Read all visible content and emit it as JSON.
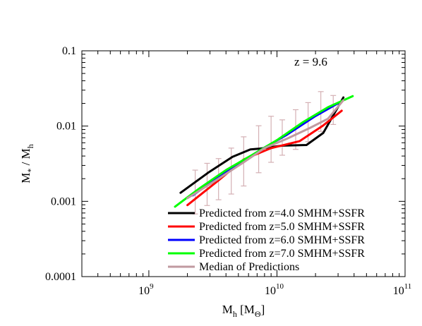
{
  "chart_data": {
    "type": "line",
    "annotation": "z = 9.6",
    "xlabel": {
      "main": "M",
      "sub": "h",
      "unit": " [M",
      "unit_sub": "Θ",
      "unit_close": "]"
    },
    "ylabel": {
      "main": "M",
      "sub1": "*",
      "mid": " / M",
      "sub2": "h"
    },
    "x_scale": "log",
    "y_scale": "log",
    "xlim": [
      300000000,
      100000000000
    ],
    "ylim": [
      0.0001,
      0.1
    ],
    "x_ticks": [
      {
        "value": 1000000000,
        "base": "10",
        "exp": "9"
      },
      {
        "value": 10000000000,
        "base": "10",
        "exp": "10"
      },
      {
        "value": 100000000000,
        "base": "10",
        "exp": "11"
      }
    ],
    "y_ticks": [
      {
        "value": 0.1,
        "label": "0.1"
      },
      {
        "value": 0.01,
        "label": "0.01"
      },
      {
        "value": 0.001,
        "label": "0.001"
      },
      {
        "value": 0.0001,
        "label": "0.0001"
      }
    ],
    "grid": false,
    "legend_position": "bottom-right",
    "series": [
      {
        "name": "Predicted from z=4.0 SMHM+SSFR",
        "color": "#000000",
        "x": [
          1770000000,
          2900000000,
          4500000000,
          6200000000,
          7200000000,
          11000000000,
          17000000000,
          23000000000,
          33000000000
        ],
        "y": [
          0.0013,
          0.0024,
          0.0039,
          0.0049,
          0.005,
          0.0055,
          0.0056,
          0.0081,
          0.024
        ]
      },
      {
        "name": "Predicted from z=5.0 SMHM+SSFR",
        "color": "#ff0000",
        "x": [
          2000000000,
          3500000000,
          5500000000,
          9000000000,
          15000000000,
          23000000000,
          32000000000
        ],
        "y": [
          0.00089,
          0.0019,
          0.0036,
          0.0051,
          0.0063,
          0.0102,
          0.016
        ]
      },
      {
        "name": "Predicted from z=6.0 SMHM+SSFR",
        "color": "#0000ff",
        "x": [
          2200000000,
          3500000000,
          5500000000,
          8000000000,
          12000000000,
          20000000000,
          33000000000
        ],
        "y": [
          0.0012,
          0.0021,
          0.0035,
          0.0052,
          0.0077,
          0.0136,
          0.022
        ]
      },
      {
        "name": "Predicted from z=7.0 SMHM+SSFR",
        "color": "#00ff00",
        "x": [
          1600000000,
          2500000000,
          4000000000,
          6500000000,
          10000000000,
          16000000000,
          25000000000,
          39000000000
        ],
        "y": [
          0.00085,
          0.0015,
          0.0026,
          0.0042,
          0.0065,
          0.0113,
          0.0178,
          0.025
        ]
      },
      {
        "name": "Median of Predictions",
        "color": "#c09aa0",
        "x": [
          2000000000,
          3500000000,
          5500000000,
          8000000000,
          12000000000,
          18000000000,
          25000000000,
          33000000000
        ],
        "y": [
          0.0011,
          0.002,
          0.0033,
          0.0051,
          0.0068,
          0.0094,
          0.0125,
          0.022
        ]
      }
    ],
    "error_bars": {
      "color": "#d4b0b4",
      "points": [
        {
          "x": 2300000000,
          "y": 0.00125,
          "low": 0.00068,
          "high": 0.0026
        },
        {
          "x": 2850000000,
          "y": 0.00165,
          "low": 0.00088,
          "high": 0.0032
        },
        {
          "x": 3500000000,
          "y": 0.00215,
          "low": 0.00105,
          "high": 0.0037
        },
        {
          "x": 4400000000,
          "y": 0.0028,
          "low": 0.00125,
          "high": 0.0051
        },
        {
          "x": 5500000000,
          "y": 0.0034,
          "low": 0.0016,
          "high": 0.0072
        },
        {
          "x": 7200000000,
          "y": 0.005,
          "low": 0.0024,
          "high": 0.0101
        },
        {
          "x": 9000000000,
          "y": 0.0057,
          "low": 0.0033,
          "high": 0.0135
        },
        {
          "x": 11000000000,
          "y": 0.0066,
          "low": 0.0041,
          "high": 0.0121
        },
        {
          "x": 14000000000,
          "y": 0.0081,
          "low": 0.0049,
          "high": 0.0165
        },
        {
          "x": 17500000000,
          "y": 0.0099,
          "low": 0.0062,
          "high": 0.0205
        },
        {
          "x": 22000000000,
          "y": 0.0127,
          "low": 0.0085,
          "high": 0.0287
        },
        {
          "x": 27500000000,
          "y": 0.0158,
          "low": 0.0105,
          "high": 0.0255
        }
      ]
    }
  }
}
